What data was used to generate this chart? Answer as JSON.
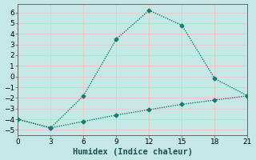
{
  "xlabel": "Humidex (Indice chaleur)",
  "background_color": "#c5e8e5",
  "grid_color": "#e8c8c8",
  "line_color": "#1a7a6e",
  "x_line1": [
    0,
    3,
    6,
    9,
    12,
    15,
    18,
    21
  ],
  "y_line1": [
    -4,
    -4.8,
    -1.8,
    3.5,
    6.2,
    4.8,
    -0.2,
    -1.8
  ],
  "x_line2": [
    0,
    3,
    6,
    9,
    12,
    15,
    18,
    21
  ],
  "y_line2": [
    -4,
    -4.8,
    -4.2,
    -3.6,
    -3.1,
    -2.6,
    -2.2,
    -1.8
  ],
  "xlim": [
    0,
    21
  ],
  "ylim": [
    -5.5,
    6.8
  ],
  "xticks": [
    0,
    3,
    6,
    9,
    12,
    15,
    18,
    21
  ],
  "yticks": [
    -5,
    -4,
    -3,
    -2,
    -1,
    0,
    1,
    2,
    3,
    4,
    5,
    6
  ],
  "marker": "D",
  "marker_size": 2.5,
  "line_width": 1.0,
  "tick_fontsize": 6.5,
  "xlabel_fontsize": 7.5
}
